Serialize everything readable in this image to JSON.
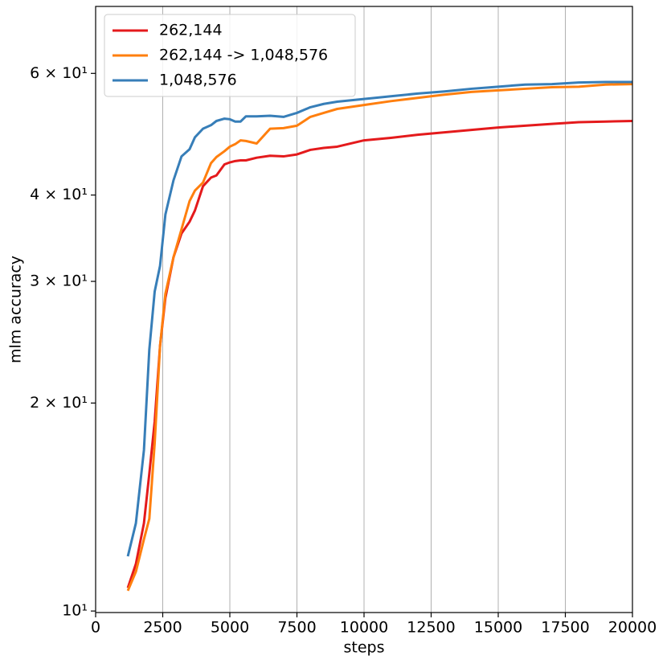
{
  "chart_data": {
    "type": "line",
    "x_label": "steps",
    "y_label": "mlm accuracy",
    "log_y": true,
    "grid": "x",
    "legend": "upper left",
    "x": [
      1200,
      1500,
      1800,
      2000,
      2200,
      2400,
      2600,
      2900,
      3200,
      3500,
      3700,
      4000,
      4300,
      4500,
      4800,
      5000,
      5200,
      5400,
      5600,
      6000,
      6500,
      7000,
      7500,
      8000,
      8500,
      9000,
      10000,
      11000,
      12000,
      13000,
      14000,
      15000,
      16000,
      17000,
      18000,
      19000,
      20000
    ],
    "series": [
      {
        "name": "262,144",
        "color": "#e41a1c",
        "values": [
          10.8,
          11.7,
          13.4,
          15.8,
          18.8,
          24.2,
          28.4,
          32.5,
          35.2,
          36.6,
          38.0,
          41.2,
          42.4,
          42.7,
          44.3,
          44.6,
          44.8,
          44.9,
          44.9,
          45.3,
          45.6,
          45.5,
          45.8,
          46.5,
          46.8,
          47.0,
          48.0,
          48.4,
          48.9,
          49.3,
          49.7,
          50.1,
          50.4,
          50.7,
          51.0,
          51.1,
          51.2
        ]
      },
      {
        "name": "262,144 -> 1,048,576",
        "color": "#ff7f0e",
        "values": [
          10.7,
          11.4,
          12.7,
          13.6,
          17.5,
          24.2,
          28.8,
          32.5,
          35.7,
          39.2,
          40.6,
          41.7,
          44.5,
          45.4,
          46.3,
          47.0,
          47.4,
          48.0,
          47.9,
          47.5,
          49.9,
          50.0,
          50.4,
          51.9,
          52.6,
          53.3,
          54.0,
          54.7,
          55.3,
          55.9,
          56.4,
          56.7,
          57.0,
          57.3,
          57.4,
          57.8,
          57.9
        ]
      },
      {
        "name": "1,048,576",
        "color": "#377eb8",
        "values": [
          12.0,
          13.4,
          17.1,
          23.9,
          29.0,
          31.6,
          37.5,
          42.0,
          45.5,
          46.6,
          48.5,
          49.9,
          50.5,
          51.2,
          51.6,
          51.5,
          51.1,
          51.1,
          52.0,
          52.0,
          52.1,
          51.9,
          52.6,
          53.6,
          54.2,
          54.6,
          55.1,
          55.6,
          56.1,
          56.5,
          57.0,
          57.4,
          57.8,
          57.9,
          58.2,
          58.3,
          58.3
        ]
      }
    ],
    "xlim": [
      0,
      20000
    ],
    "xticks": [
      0,
      2500,
      5000,
      7500,
      10000,
      12500,
      15000,
      17500,
      20000
    ],
    "ylim": [
      9.95,
      75
    ],
    "yticks": [
      {
        "value": 10,
        "label": "10¹"
      },
      {
        "value": 20,
        "label": "2 × 10¹"
      },
      {
        "value": 30,
        "label": "3 × 10¹"
      },
      {
        "value": 40,
        "label": "4 × 10¹"
      },
      {
        "value": 60,
        "label": "6 × 10¹"
      }
    ]
  }
}
